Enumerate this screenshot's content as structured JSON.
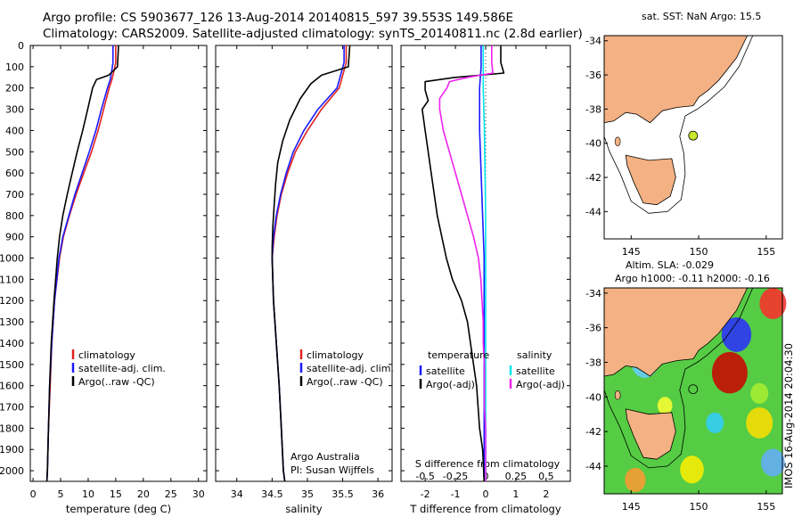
{
  "header": {
    "line1": "Argo profile: CS 5903677_126 13-Aug-2014 20140815_597 39.553S 149.586E",
    "line2": "Climatology: CARS2009. Satellite-adjusted climatology: synTS_20140811.nc (2.8d earlier)"
  },
  "colors": {
    "climatology": "#e02020",
    "satellite": "#1a1aff",
    "argo": "#000000",
    "salinity_satellite": "#00e5ee",
    "salinity_argo": "#ee22ee",
    "land": "#f4b183"
  },
  "depth_axis": {
    "range": [
      0,
      2050
    ],
    "ticks": [
      0,
      100,
      200,
      300,
      400,
      500,
      600,
      700,
      800,
      900,
      1000,
      1100,
      1200,
      1300,
      1400,
      1500,
      1600,
      1700,
      1800,
      1900,
      2000
    ]
  },
  "chart_data": [
    {
      "type": "line",
      "xlabel": "temperature (deg C)",
      "xlim": [
        -0.5,
        31.5
      ],
      "xticks": [
        0,
        5,
        10,
        15,
        20,
        25,
        30
      ],
      "legend": [
        "climatology",
        "satellite-adj. clim.",
        "Argo(..raw -QC)"
      ],
      "legend_position": "lower-center",
      "series": [
        {
          "name": "climatology",
          "depth": [
            0,
            80,
            130,
            160,
            200,
            300,
            400,
            500,
            600,
            700,
            800,
            900,
            1000,
            1200,
            1400,
            1600,
            1800,
            2000,
            2050
          ],
          "values": [
            15,
            15,
            14.6,
            14.3,
            13.8,
            12.8,
            11.8,
            10.6,
            9.2,
            7.8,
            6.6,
            5.5,
            4.8,
            3.9,
            3.4,
            3.1,
            2.8,
            2.6,
            2.5
          ]
        },
        {
          "name": "satellite-adj. clim.",
          "depth": [
            0,
            80,
            130,
            160,
            200,
            300,
            400,
            500,
            600,
            700,
            800,
            900,
            1000,
            1200,
            1400,
            1600,
            1800,
            2000,
            2050
          ],
          "values": [
            14.5,
            14.5,
            14.2,
            14.0,
            13.5,
            12.4,
            11.4,
            10.2,
            8.9,
            7.6,
            6.5,
            5.4,
            4.7,
            3.9,
            3.4,
            3.0,
            2.8,
            2.6,
            2.5
          ]
        },
        {
          "name": "Argo(..raw -QC)",
          "depth": [
            0,
            100,
            140,
            160,
            200,
            300,
            400,
            500,
            600,
            700,
            800,
            900,
            1000,
            1200,
            1400,
            1600,
            1800,
            2000,
            2050
          ],
          "values": [
            15.5,
            15.3,
            13.7,
            11.5,
            10.8,
            9.9,
            9.0,
            8.0,
            7.1,
            6.2,
            5.4,
            4.8,
            4.4,
            3.8,
            3.3,
            3.0,
            2.8,
            2.6,
            2.5
          ]
        }
      ]
    },
    {
      "type": "line",
      "xlabel": "salinity",
      "xlim": [
        33.7,
        36.2
      ],
      "xticks": [
        34,
        34.5,
        35,
        35.5,
        36
      ],
      "xticklabels": [
        "34",
        "34.5",
        "35",
        "35.5",
        "36"
      ],
      "legend": [
        "climatology",
        "satellite-adj. clim.",
        "Argo(..raw -QC)"
      ],
      "legend_position": "lower-right",
      "annotation": [
        "Argo Australia",
        "PI: Susan Wijffels"
      ],
      "series": [
        {
          "name": "climatology",
          "depth": [
            0,
            80,
            140,
            200,
            300,
            400,
            500,
            600,
            700,
            800,
            900,
            1000,
            1200,
            1400,
            1600,
            1800,
            2000,
            2050
          ],
          "values": [
            35.55,
            35.55,
            35.5,
            35.45,
            35.2,
            35.0,
            34.83,
            34.72,
            34.63,
            34.57,
            34.53,
            34.5,
            34.52,
            34.56,
            34.6,
            34.63,
            34.66,
            34.68
          ]
        },
        {
          "name": "satellite-adj. clim.",
          "depth": [
            0,
            80,
            140,
            200,
            300,
            400,
            500,
            600,
            700,
            800,
            900,
            1000,
            1200,
            1400,
            1600,
            1800,
            2000,
            2050
          ],
          "values": [
            35.52,
            35.52,
            35.47,
            35.42,
            35.15,
            34.95,
            34.8,
            34.7,
            34.62,
            34.56,
            34.52,
            34.5,
            34.52,
            34.56,
            34.6,
            34.63,
            34.66,
            34.68
          ]
        },
        {
          "name": "Argo(..raw -QC)",
          "depth": [
            0,
            100,
            140,
            180,
            250,
            350,
            450,
            550,
            650,
            750,
            850,
            950,
            1000,
            1200,
            1400,
            1600,
            1800,
            2000,
            2050
          ],
          "values": [
            35.6,
            35.58,
            35.2,
            35.05,
            34.9,
            34.75,
            34.65,
            34.58,
            34.55,
            34.53,
            34.51,
            34.5,
            34.5,
            34.52,
            34.56,
            34.6,
            34.63,
            34.66,
            34.68
          ]
        }
      ]
    },
    {
      "type": "line",
      "xlabel": "T difference from climatology",
      "x2label": "S difference from climatology",
      "xlim": [
        -2.8,
        2.8
      ],
      "xticks": [
        -2,
        -1,
        0,
        1,
        2
      ],
      "x2ticks": [
        -0.5,
        -0.25,
        0,
        0.25,
        0.5
      ],
      "x2ticklabels": [
        "-0.5",
        "-0.25",
        "0",
        "0.25",
        "0.5"
      ],
      "legend": [
        "temperature",
        "satellite",
        "Argo(-adj)",
        "salinity",
        "satellite",
        "Argo(-adj)"
      ],
      "legend_position": "lower-center",
      "series": [
        {
          "name": "satellite",
          "kind": "temperature",
          "depth": [
            0,
            100,
            200,
            400,
            600,
            800,
            1000,
            1200,
            1500,
            1800,
            2050
          ],
          "values": [
            -0.15,
            -0.15,
            -0.2,
            -0.2,
            -0.15,
            -0.1,
            -0.05,
            -0.05,
            -0.05,
            -0.05,
            -0.05
          ]
        },
        {
          "name": "Argo(-adj)",
          "kind": "temperature",
          "depth": [
            0,
            80,
            130,
            150,
            170,
            210,
            260,
            300,
            400,
            500,
            600,
            700,
            800,
            900,
            1000,
            1100,
            1200,
            1300,
            1400,
            1500,
            1600,
            1700,
            1800,
            1900,
            2050
          ],
          "values": [
            0.5,
            0.5,
            0.6,
            -1.0,
            -2.0,
            -2.0,
            -1.9,
            -2.1,
            -2.0,
            -1.9,
            -1.8,
            -1.7,
            -1.6,
            -1.45,
            -1.3,
            -1.1,
            -0.8,
            -0.6,
            -0.5,
            -0.4,
            -0.3,
            -0.25,
            -0.2,
            -0.1,
            -0.05
          ]
        },
        {
          "name": "satellite",
          "kind": "salinity",
          "depth": [
            0,
            100,
            200,
            400,
            600,
            800,
            1000,
            1200,
            1500,
            1800,
            2050
          ],
          "values": [
            -0.02,
            -0.02,
            -0.02,
            -0.01,
            -0.005,
            0,
            0,
            0,
            0,
            0,
            0
          ]
        },
        {
          "name": "Argo(-adj)",
          "kind": "salinity",
          "depth": [
            0,
            80,
            130,
            150,
            170,
            200,
            250,
            300,
            400,
            500,
            600,
            700,
            800,
            900,
            1000,
            1100,
            1200,
            1300,
            1400,
            1500,
            1600,
            1700,
            1800,
            1900,
            2050
          ],
          "values": [
            0.05,
            0.05,
            0.06,
            -0.15,
            -0.3,
            -0.32,
            -0.38,
            -0.38,
            -0.35,
            -0.3,
            -0.25,
            -0.2,
            -0.15,
            -0.1,
            -0.06,
            -0.04,
            -0.03,
            -0.02,
            -0.02,
            -0.01,
            -0.01,
            -0.01,
            0,
            0,
            0
          ]
        }
      ]
    }
  ],
  "maps": {
    "top": {
      "title": "sat. SST: NaN Argo: 15.5",
      "xticks": [
        145,
        150,
        155
      ],
      "yticks": [
        -34,
        -36,
        -38,
        -40,
        -42,
        -44
      ],
      "marker": {
        "lon": 149.586,
        "lat": -39.553
      }
    },
    "bottom": {
      "title1": "Altim. SLA: -0.029",
      "title2": "Argo h1000: -0.11 h2000: -0.16",
      "xticks": [
        145,
        150,
        155
      ],
      "yticks": [
        -34,
        -36,
        -38,
        -40,
        -42,
        -44
      ],
      "marker": {
        "lon": 149.586,
        "lat": -39.553
      }
    }
  },
  "stamp": "IMOS 16-Aug-2014 20:04:30"
}
